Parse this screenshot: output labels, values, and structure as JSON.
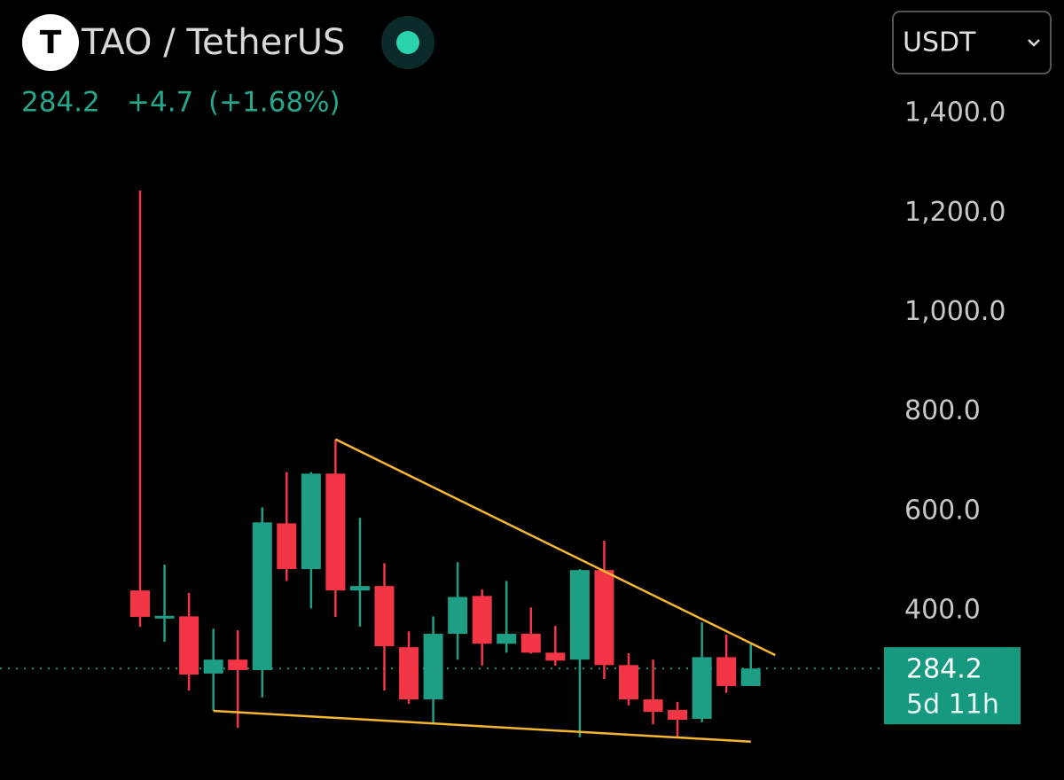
{
  "header": {
    "logo": "T",
    "symbol": "TAO / TetherUS",
    "price": "284.2",
    "change": "+4.7",
    "change_pct": "(+1.68%)",
    "currency": "USDT"
  },
  "chart_data": {
    "type": "candlestick",
    "categories": [
      null,
      null,
      null,
      null,
      null,
      null,
      null,
      null,
      null,
      null,
      null,
      null,
      null,
      null,
      null,
      null,
      null,
      null,
      null,
      null,
      null,
      null,
      null,
      null,
      null,
      null
    ],
    "open": [
      441,
      388,
      389,
      274,
      302,
      281,
      576,
      484,
      676,
      441,
      450,
      327,
      222,
      354,
      430,
      334,
      354,
      316,
      302,
      482,
      291,
      222,
      201,
      183,
      307,
      249
    ],
    "high": [
      1245,
      493,
      436,
      364,
      361,
      608,
      679,
      679,
      745,
      587,
      496,
      359,
      389,
      498,
      443,
      460,
      407,
      370,
      484,
      541,
      315,
      302,
      217,
      377,
      352,
      334
    ],
    "low": [
      368,
      338,
      240,
      199,
      165,
      226,
      460,
      405,
      388,
      368,
      240,
      213,
      172,
      302,
      290,
      316,
      314,
      290,
      146,
      263,
      210,
      172,
      147,
      176,
      235,
      249
    ],
    "close": [
      388,
      390,
      272,
      302,
      281,
      578,
      484,
      676,
      441,
      450,
      329,
      222,
      354,
      428,
      334,
      354,
      316,
      300,
      482,
      291,
      222,
      197,
      181,
      307,
      249,
      284.2
    ],
    "up_color": "#1f9e86",
    "down_color": "#f23645",
    "ylim": [
      60,
      1450
    ],
    "yticks": [
      {
        "value": 400,
        "label": "400.0"
      },
      {
        "value": 600,
        "label": "600.0"
      },
      {
        "value": 800,
        "label": "800.0"
      },
      {
        "value": 1000,
        "label": "1,000.0"
      },
      {
        "value": 1200,
        "label": "1,200.0"
      },
      {
        "value": 1400,
        "label": "1,400.0"
      }
    ],
    "trendlines": [
      {
        "color": "#f7b733",
        "x": [
          8,
          26
        ],
        "values": [
          745,
          311
        ]
      },
      {
        "color": "#f7b733",
        "x": [
          3,
          25
        ],
        "values": [
          199,
          137
        ]
      }
    ],
    "price_tag": {
      "value": 284.2,
      "countdown": "5d 11h",
      "color": "#16997f"
    }
  }
}
